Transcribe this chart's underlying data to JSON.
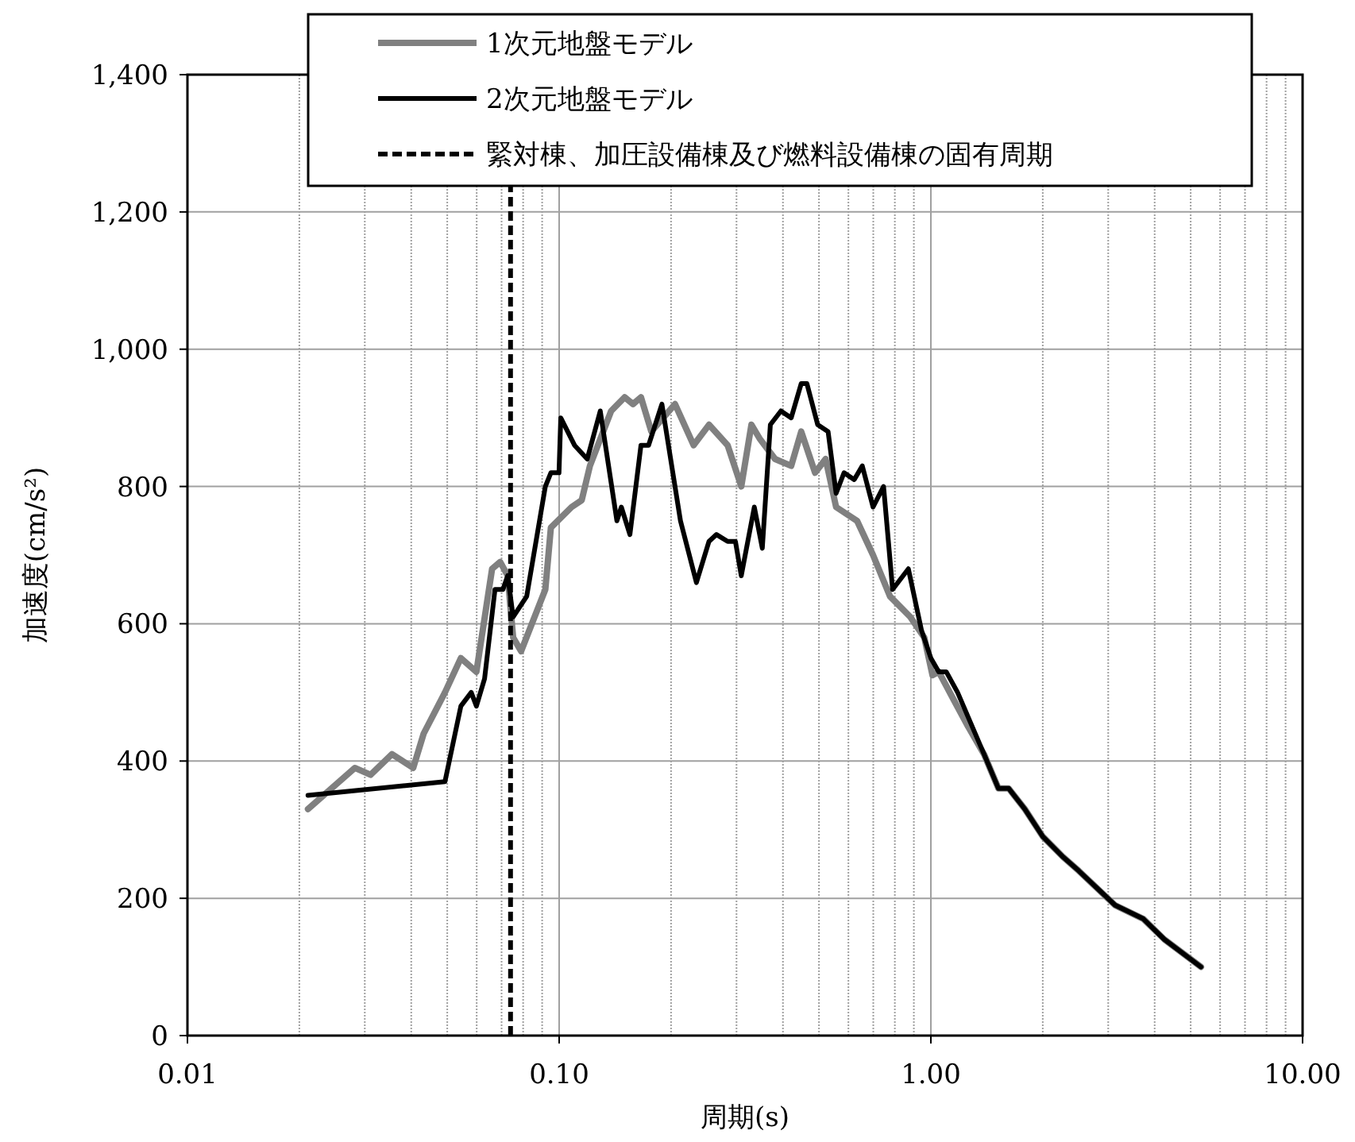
{
  "chart_data": {
    "type": "line",
    "xlabel": "周期(s)",
    "ylabel": "加速度(cm/s²)",
    "log": "x",
    "xlim": [
      0.01,
      10
    ],
    "xticks": [
      {
        "value": 0.01,
        "label": "0.01"
      },
      {
        "value": 0.1,
        "label": "0.10"
      },
      {
        "value": 1,
        "label": "1.00"
      },
      {
        "value": 10,
        "label": "10.00"
      }
    ],
    "ylim": [
      0,
      1400
    ],
    "yticks": [
      0,
      200,
      400,
      600,
      800,
      {
        "value": 1000,
        "label": "1,000"
      },
      {
        "value": 1200,
        "label": "1,200"
      },
      {
        "value": 1400,
        "label": "1,400"
      }
    ],
    "grid": true,
    "legend": "top",
    "marker": "none",
    "line_style": "solid",
    "series": [
      {
        "name": "1次元地盤モデル",
        "color": "#808080",
        "x": [
          0.0211,
          0.0282,
          0.0311,
          0.0355,
          0.0405,
          0.0432,
          0.0493,
          0.0544,
          0.0599,
          0.066,
          0.0694,
          0.0727,
          0.0752,
          0.079,
          0.0918,
          0.095,
          0.108,
          0.115,
          0.121,
          0.138,
          0.15,
          0.158,
          0.166,
          0.177,
          0.205,
          0.23,
          0.253,
          0.284,
          0.309,
          0.329,
          0.346,
          0.381,
          0.421,
          0.448,
          0.488,
          0.521,
          0.556,
          0.633,
          0.699,
          0.776,
          0.88,
          0.96,
          1.01,
          1.05,
          1.15,
          1.26,
          1.39,
          1.52,
          1.62,
          1.79,
          2.0,
          2.27,
          2.5,
          3.13,
          3.73,
          4.25,
          5.33
        ],
        "values": [
          330,
          390,
          380,
          410,
          390,
          440,
          500,
          550,
          530,
          680,
          690,
          670,
          580,
          560,
          650,
          740,
          770,
          780,
          830,
          910,
          930,
          920,
          930,
          880,
          920,
          860,
          890,
          860,
          800,
          890,
          870,
          840,
          830,
          880,
          820,
          840,
          770,
          750,
          700,
          640,
          610,
          580,
          525,
          530,
          490,
          450,
          410,
          360,
          360,
          330,
          290,
          260,
          240,
          190,
          170,
          140,
          100
        ]
      },
      {
        "name": "2次元地盤モデル",
        "color": "#000000",
        "x": [
          0.0211,
          0.0493,
          0.0544,
          0.058,
          0.0599,
          0.063,
          0.0672,
          0.0706,
          0.0727,
          0.0752,
          0.0818,
          0.0918,
          0.095,
          0.0999,
          0.101,
          0.11,
          0.119,
          0.129,
          0.143,
          0.147,
          0.155,
          0.166,
          0.174,
          0.189,
          0.212,
          0.234,
          0.253,
          0.265,
          0.284,
          0.298,
          0.309,
          0.335,
          0.352,
          0.37,
          0.395,
          0.421,
          0.448,
          0.464,
          0.496,
          0.529,
          0.556,
          0.584,
          0.622,
          0.654,
          0.699,
          0.746,
          0.789,
          0.87,
          0.944,
          1.0,
          1.05,
          1.1,
          1.18,
          1.39,
          1.52,
          1.62,
          1.79,
          2.0,
          2.27,
          2.5,
          3.13,
          3.73,
          4.25,
          5.33
        ],
        "values": [
          350,
          370,
          480,
          500,
          480,
          520,
          650,
          650,
          670,
          610,
          640,
          800,
          820,
          820,
          900,
          860,
          840,
          910,
          750,
          770,
          730,
          860,
          860,
          920,
          750,
          660,
          720,
          730,
          720,
          720,
          670,
          770,
          710,
          890,
          910,
          900,
          950,
          950,
          890,
          880,
          790,
          820,
          810,
          830,
          770,
          800,
          650,
          680,
          590,
          550,
          530,
          530,
          500,
          410,
          360,
          360,
          330,
          290,
          260,
          240,
          190,
          170,
          140,
          100
        ]
      }
    ],
    "ref_lines": [
      {
        "axis": "x",
        "value": 0.074,
        "label": "緊対棟、加圧設備棟及び燃料設備棟の固有周期",
        "color": "#000000",
        "line_style": "dashed"
      }
    ]
  }
}
